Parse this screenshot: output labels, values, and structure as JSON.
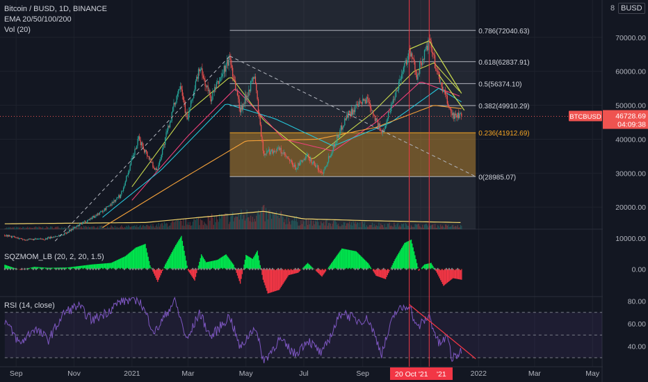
{
  "header": {
    "symbol_title": "Bitcoin / BUSD, 1D, BINANCE",
    "ema_label": "EMA 20/50/100/200",
    "vol_label": "Vol (20)",
    "sqz_label": "SQZMOM_LB (20, 2, 20, 1.5)",
    "rsi_label": "RSI (14, close)",
    "scale_button": "8",
    "currency_button": "BUSD"
  },
  "price_tag": {
    "symbol": "BTCBUSD",
    "price": "46728.69",
    "countdown": "04:09:38",
    "color": "#ef5350"
  },
  "date_tag": {
    "text": "20 Oct '21",
    "text2": "'21",
    "color": "#f23645"
  },
  "colors": {
    "background": "#131722",
    "up": "#26a69a",
    "down": "#ef5350",
    "ema20": "#c6d64c",
    "ema50": "#f0417a",
    "ema100": "#26c6da",
    "ema200": "#f5a23a",
    "fib_zone": "#f6a623",
    "rsi": "#7e57c2",
    "sqz_pos": "#00e64d",
    "sqz_neg": "#f23645"
  },
  "chart_data": [
    {
      "type": "candlestick",
      "series_names": [
        "EMA 20",
        "EMA 50",
        "EMA 100",
        "EMA 200",
        "Vol (20)"
      ],
      "y_ticks": [
        "70000.00",
        "60000.00",
        "50000.00",
        "40000.00",
        "30000.00",
        "20000.00"
      ],
      "y_tick_values": [
        70000,
        60000,
        50000,
        40000,
        30000,
        20000
      ],
      "ylim": [
        13500,
        81000
      ],
      "x_ticks": [
        "Sep",
        "Nov",
        "2021",
        "Mar",
        "May",
        "Jul",
        "Sep",
        "Oct",
        "2022",
        "Mar",
        "May"
      ],
      "price_path": [
        [
          "2020-08-20",
          11800
        ],
        [
          "2020-09-10",
          10400
        ],
        [
          "2020-10-01",
          10600
        ],
        [
          "2020-10-20",
          11900
        ],
        [
          "2020-11-10",
          15300
        ],
        [
          "2020-12-01",
          18800
        ],
        [
          "2020-12-20",
          23500
        ],
        [
          "2021-01-08",
          40000
        ],
        [
          "2021-01-27",
          30500
        ],
        [
          "2021-02-21",
          57000
        ],
        [
          "2021-02-28",
          45500
        ],
        [
          "2021-03-13",
          61000
        ],
        [
          "2021-03-25",
          52000
        ],
        [
          "2021-04-14",
          64000
        ],
        [
          "2021-04-25",
          48500
        ],
        [
          "2021-05-10",
          58800
        ],
        [
          "2021-05-19",
          36000
        ],
        [
          "2021-06-05",
          37000
        ],
        [
          "2021-06-22",
          31500
        ],
        [
          "2021-07-05",
          35000
        ],
        [
          "2021-07-20",
          29900
        ],
        [
          "2021-08-15",
          47000
        ],
        [
          "2021-09-06",
          52000
        ],
        [
          "2021-09-21",
          41500
        ],
        [
          "2021-10-20",
          66000
        ],
        [
          "2021-10-28",
          59000
        ],
        [
          "2021-11-10",
          68800
        ],
        [
          "2021-11-20",
          58000
        ],
        [
          "2021-12-04",
          47000
        ],
        [
          "2021-12-14",
          46729
        ]
      ],
      "ema_paths": [
        {
          "name": "EMA 20",
          "points": [
            [
              "2021-01-01",
              26000
            ],
            [
              "2021-02-25",
              47000
            ],
            [
              "2021-04-15",
              58500
            ],
            [
              "2021-05-20",
              45500
            ],
            [
              "2021-07-10",
              34000
            ],
            [
              "2021-09-10",
              47500
            ],
            [
              "2021-10-25",
              60000
            ],
            [
              "2021-11-15",
              62500
            ],
            [
              "2021-12-14",
              53500
            ]
          ]
        },
        {
          "name": "EMA 50",
          "points": [
            [
              "2021-01-01",
              22000
            ],
            [
              "2021-03-01",
              41000
            ],
            [
              "2021-04-20",
              55000
            ],
            [
              "2021-06-10",
              40000
            ],
            [
              "2021-08-01",
              36500
            ],
            [
              "2021-09-15",
              45000
            ],
            [
              "2021-11-01",
              57000
            ],
            [
              "2021-12-14",
              52500
            ]
          ]
        },
        {
          "name": "EMA 100",
          "points": [
            [
              "2020-12-01",
              17000
            ],
            [
              "2021-02-01",
              31000
            ],
            [
              "2021-04-10",
              50500
            ],
            [
              "2021-06-01",
              46000
            ],
            [
              "2021-08-01",
              38000
            ],
            [
              "2021-10-01",
              45000
            ],
            [
              "2021-11-20",
              55000
            ],
            [
              "2021-12-14",
              51000
            ]
          ]
        },
        {
          "name": "EMA 200",
          "points": [
            [
              "2020-12-01",
              14000
            ],
            [
              "2021-02-15",
              27000
            ],
            [
              "2021-05-01",
              39500
            ],
            [
              "2021-07-15",
              40000
            ],
            [
              "2021-09-15",
              43500
            ],
            [
              "2021-11-15",
              50000
            ],
            [
              "2021-12-14",
              49000
            ]
          ]
        }
      ],
      "volume_ma_levels": [
        [
          "2020-08-20",
          0.05
        ],
        [
          "2021-01-15",
          0.1
        ],
        [
          "2021-05-20",
          0.55
        ],
        [
          "2021-06-30",
          0.25
        ],
        [
          "2021-09-01",
          0.18
        ],
        [
          "2021-12-14",
          0.1
        ]
      ],
      "fibonacci": [
        {
          "ratio": "0.786",
          "price": 72040.63,
          "label": "0.786(72040.63)"
        },
        {
          "ratio": "0.618",
          "price": 62837.91,
          "label": "0.618(62837.91)"
        },
        {
          "ratio": "0.5",
          "price": 56374.1,
          "label": "0.5(56374.10)"
        },
        {
          "ratio": "0.382",
          "price": 49910.29,
          "label": "0.382(49910.29)"
        },
        {
          "ratio": "0.236",
          "price": 41912.69,
          "label": "0.236(41912.69)"
        },
        {
          "ratio": "0",
          "price": 28985.07,
          "label": "0(28985.07)"
        }
      ],
      "fib_range_dates": [
        "2021-04-14",
        "2021-12-29"
      ],
      "trendlines": [
        {
          "style": "dashed",
          "from": [
            "2020-10-12",
            10000
          ],
          "to": [
            "2021-04-14",
            64500
          ]
        },
        {
          "style": "dashed",
          "from": [
            "2021-04-14",
            64500
          ],
          "to": [
            "2021-12-29",
            29000
          ]
        },
        {
          "style": "solid",
          "color": "#c6d64c",
          "from": [
            "2021-10-20",
            66500
          ],
          "to": [
            "2021-11-10",
            69000
          ]
        },
        {
          "style": "solid",
          "color": "#c6d64c",
          "from": [
            "2021-11-10",
            69000
          ],
          "to": [
            "2021-12-14",
            53500
          ]
        },
        {
          "style": "solid",
          "color": "#c6d64c",
          "from": [
            "2021-11-20",
            59000
          ],
          "to": [
            "2021-12-17",
            48500
          ]
        }
      ],
      "last_price": 46728.69
    },
    {
      "type": "bar",
      "title": "SQZMOM_LB (20, 2, 20, 1.5)",
      "y_ticks": [
        "10000.00",
        "0.00"
      ],
      "y_tick_values": [
        10000,
        0
      ],
      "ylim": [
        -9000,
        13000
      ],
      "momentum_path": [
        [
          "2020-08-20",
          1400
        ],
        [
          "2020-09-05",
          -300
        ],
        [
          "2020-09-20",
          700
        ],
        [
          "2020-10-05",
          400
        ],
        [
          "2020-10-25",
          500
        ],
        [
          "2020-11-20",
          1500
        ],
        [
          "2020-12-10",
          2000
        ],
        [
          "2020-12-25",
          4200
        ],
        [
          "2021-01-05",
          7000
        ],
        [
          "2021-01-15",
          8200
        ],
        [
          "2021-01-20",
          1200
        ],
        [
          "2021-01-28",
          -4200
        ],
        [
          "2021-02-05",
          1500
        ],
        [
          "2021-02-16",
          7800
        ],
        [
          "2021-02-22",
          10800
        ],
        [
          "2021-03-01",
          -500
        ],
        [
          "2021-03-08",
          -3800
        ],
        [
          "2021-03-15",
          4800
        ],
        [
          "2021-03-20",
          2200
        ],
        [
          "2021-04-01",
          3000
        ],
        [
          "2021-04-10",
          4800
        ],
        [
          "2021-04-18",
          1400
        ],
        [
          "2021-04-25",
          -4800
        ],
        [
          "2021-05-01",
          4600
        ],
        [
          "2021-05-08",
          3300
        ],
        [
          "2021-05-13",
          6000
        ],
        [
          "2021-05-19",
          -3500
        ],
        [
          "2021-05-24",
          -8000
        ],
        [
          "2021-06-05",
          -6800
        ],
        [
          "2021-06-15",
          -2000
        ],
        [
          "2021-06-25",
          -1200
        ],
        [
          "2021-07-05",
          2000
        ],
        [
          "2021-07-20",
          -2500
        ],
        [
          "2021-08-01",
          2800
        ],
        [
          "2021-08-10",
          6700
        ],
        [
          "2021-08-25",
          5800
        ],
        [
          "2021-09-07",
          1800
        ],
        [
          "2021-09-15",
          -2200
        ],
        [
          "2021-09-25",
          -3300
        ],
        [
          "2021-10-05",
          3200
        ],
        [
          "2021-10-15",
          8500
        ],
        [
          "2021-10-22",
          9600
        ],
        [
          "2021-10-30",
          -600
        ],
        [
          "2021-11-05",
          1500
        ],
        [
          "2021-11-12",
          2000
        ],
        [
          "2021-11-18",
          -1200
        ],
        [
          "2021-11-25",
          -5500
        ],
        [
          "2021-12-05",
          -3000
        ],
        [
          "2021-12-14",
          -3500
        ]
      ]
    },
    {
      "type": "line",
      "title": "RSI (14, close)",
      "y_ticks": [
        "80.00",
        "60.00",
        "40.00"
      ],
      "y_tick_values": [
        80,
        60,
        40
      ],
      "ylim": [
        22,
        84
      ],
      "bands": [
        70,
        50,
        30
      ],
      "rsi_path": [
        [
          "2020-08-20",
          63
        ],
        [
          "2020-09-05",
          42
        ],
        [
          "2020-09-20",
          56
        ],
        [
          "2020-10-05",
          46
        ],
        [
          "2020-10-22",
          70
        ],
        [
          "2020-11-05",
          76
        ],
        [
          "2020-11-20",
          63
        ],
        [
          "2020-12-05",
          70
        ],
        [
          "2020-12-20",
          80
        ],
        [
          "2021-01-08",
          82
        ],
        [
          "2021-01-25",
          52
        ],
        [
          "2021-02-15",
          81
        ],
        [
          "2021-02-28",
          45
        ],
        [
          "2021-03-13",
          70
        ],
        [
          "2021-03-25",
          48
        ],
        [
          "2021-04-14",
          67
        ],
        [
          "2021-04-25",
          38
        ],
        [
          "2021-05-10",
          58
        ],
        [
          "2021-05-20",
          27
        ],
        [
          "2021-06-05",
          46
        ],
        [
          "2021-06-22",
          33
        ],
        [
          "2021-07-05",
          46
        ],
        [
          "2021-07-20",
          33
        ],
        [
          "2021-08-10",
          71
        ],
        [
          "2021-08-25",
          63
        ],
        [
          "2021-09-07",
          64
        ],
        [
          "2021-09-21",
          34
        ],
        [
          "2021-10-05",
          70
        ],
        [
          "2021-10-20",
          77
        ],
        [
          "2021-10-28",
          56
        ],
        [
          "2021-11-10",
          67
        ],
        [
          "2021-11-20",
          42
        ],
        [
          "2021-11-30",
          48
        ],
        [
          "2021-12-04",
          28
        ],
        [
          "2021-12-14",
          36
        ]
      ],
      "trendline": {
        "from": [
          "2021-10-20",
          77
        ],
        "to": [
          "2021-12-29",
          29
        ]
      }
    }
  ],
  "markers": {
    "vertical_lines": [
      "2021-10-20",
      "2021-11-10"
    ],
    "color": "#f23645"
  }
}
